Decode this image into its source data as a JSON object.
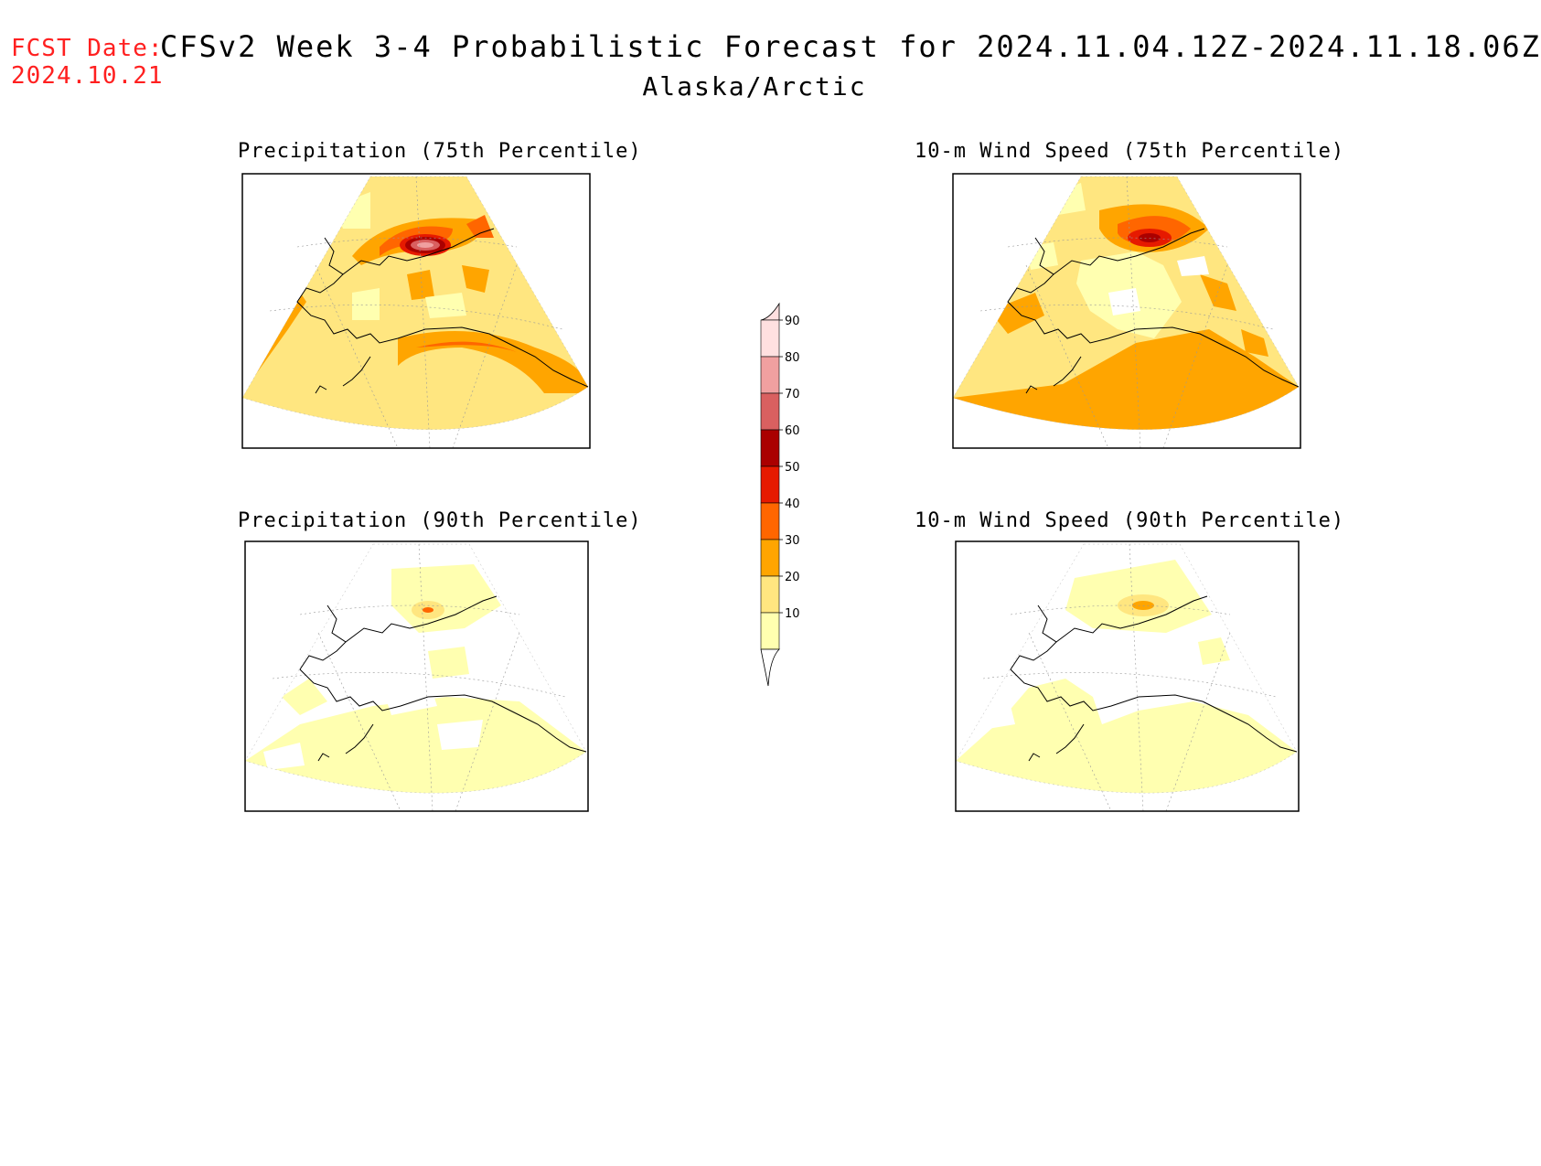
{
  "header": {
    "fcst_label": "FCST Date:",
    "fcst_date": "2024.10.21",
    "title": "CFSv2 Week 3-4 Probabilistic Forecast for 2024.11.04.12Z-2024.11.18.06Z",
    "region": "Alaska/Arctic"
  },
  "panels": [
    {
      "id": "precip75",
      "title": "Precipitation (75th Percentile)"
    },
    {
      "id": "wind75",
      "title": "10-m Wind Speed (75th Percentile)"
    },
    {
      "id": "precip90",
      "title": "Precipitation (90th Percentile)"
    },
    {
      "id": "wind90",
      "title": "10-m Wind Speed (90th Percentile)"
    }
  ],
  "colorbar": {
    "labels": [
      "10",
      "20",
      "30",
      "40",
      "50",
      "60",
      "70",
      "80",
      "90"
    ],
    "colors": [
      "#ffffb0",
      "#ffe680",
      "#ffa500",
      "#ff6600",
      "#e61a00",
      "#aa0000",
      "#d96060",
      "#f0a0a0",
      "#ffe0e0"
    ],
    "white_below": "#ffffff"
  }
}
